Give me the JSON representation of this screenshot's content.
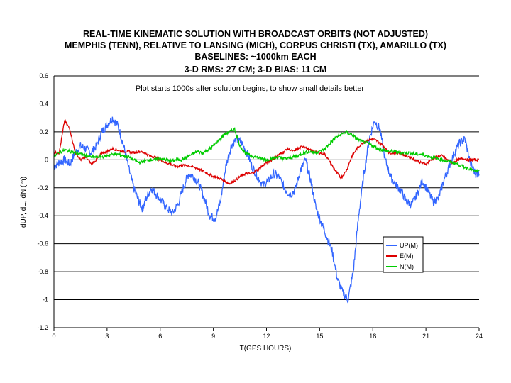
{
  "chart_data": {
    "type": "line",
    "title": [
      "REAL-TIME KINEMATIC SOLUTION WITH BROADCAST ORBITS (NOT ADJUSTED)",
      "MEMPHIS (TENN), RELATIVE TO LANSING (MICH), CORPUS CHRISTI (TX), AMARILLO (TX)",
      "BASELINES:  ~1000km EACH",
      "3-D RMS: 27 CM; 3-D BIAS: 11 CM"
    ],
    "xlabel": "T(GPS HOURS)",
    "ylabel": "dUP, dE, dN   (m)",
    "xlim": [
      0,
      24
    ],
    "ylim": [
      -1.2,
      0.6
    ],
    "xticks": [
      "0",
      "3",
      "6",
      "9",
      "12",
      "15",
      "18",
      "21",
      "24"
    ],
    "yticks": [
      "0.6",
      "0.4",
      "0.2",
      "0",
      "-0.2",
      "-0.4",
      "-0.6",
      "-0.8",
      "-1",
      "-1.2"
    ],
    "grid": true,
    "annotation": "Plot starts 1000s after solution begins, to show small details better",
    "legend_position": "bottom-right",
    "series": [
      {
        "name": "UP(M)",
        "color": "#3366ff",
        "x": [
          0.0,
          0.3,
          0.6,
          0.9,
          1.2,
          1.5,
          1.8,
          2.1,
          2.4,
          2.7,
          3.0,
          3.3,
          3.6,
          3.9,
          4.2,
          4.5,
          4.8,
          5.0,
          5.2,
          5.5,
          5.8,
          6.1,
          6.4,
          6.7,
          7.0,
          7.3,
          7.6,
          7.9,
          8.2,
          8.5,
          8.8,
          9.1,
          9.4,
          9.7,
          10.0,
          10.3,
          10.6,
          10.9,
          11.2,
          11.5,
          11.8,
          12.1,
          12.4,
          12.7,
          13.0,
          13.3,
          13.6,
          13.9,
          14.2,
          14.5,
          14.8,
          15.1,
          15.4,
          15.7,
          16.0,
          16.3,
          16.6,
          16.9,
          17.2,
          17.5,
          17.8,
          18.1,
          18.4,
          18.7,
          19.0,
          19.3,
          19.6,
          19.9,
          20.2,
          20.5,
          20.8,
          21.1,
          21.4,
          21.7,
          22.0,
          22.3,
          22.6,
          22.9,
          23.2,
          23.5,
          23.8,
          24.0
        ],
        "y": [
          -0.05,
          -0.02,
          0.0,
          -0.03,
          0.05,
          0.1,
          0.08,
          0.05,
          0.1,
          0.2,
          0.25,
          0.3,
          0.25,
          0.12,
          -0.05,
          -0.2,
          -0.3,
          -0.35,
          -0.28,
          -0.2,
          -0.25,
          -0.3,
          -0.35,
          -0.38,
          -0.32,
          -0.2,
          -0.1,
          -0.12,
          -0.18,
          -0.28,
          -0.4,
          -0.42,
          -0.3,
          -0.05,
          0.1,
          0.15,
          0.12,
          0.05,
          -0.05,
          -0.12,
          -0.18,
          -0.15,
          -0.1,
          -0.12,
          -0.2,
          -0.25,
          -0.22,
          -0.08,
          0.0,
          -0.15,
          -0.35,
          -0.45,
          -0.55,
          -0.65,
          -0.85,
          -0.95,
          -1.0,
          -0.8,
          -0.4,
          -0.1,
          0.15,
          0.28,
          0.22,
          0.0,
          -0.12,
          -0.18,
          -0.22,
          -0.3,
          -0.32,
          -0.25,
          -0.15,
          -0.22,
          -0.3,
          -0.28,
          -0.15,
          -0.05,
          0.05,
          0.12,
          0.15,
          -0.02,
          -0.1,
          -0.1
        ]
      },
      {
        "name": "E(M)",
        "color": "#dd0000",
        "x": [
          0.0,
          0.3,
          0.6,
          0.9,
          1.2,
          1.5,
          1.8,
          2.1,
          2.4,
          2.7,
          3.0,
          3.3,
          3.6,
          3.9,
          4.2,
          4.5,
          4.8,
          5.1,
          5.4,
          5.7,
          6.0,
          6.3,
          6.6,
          6.9,
          7.2,
          7.5,
          7.8,
          8.1,
          8.4,
          8.7,
          9.0,
          9.3,
          9.6,
          9.9,
          10.2,
          10.5,
          10.8,
          11.1,
          11.4,
          11.7,
          12.0,
          12.3,
          12.6,
          12.9,
          13.2,
          13.5,
          13.8,
          14.1,
          14.4,
          14.7,
          15.0,
          15.3,
          15.6,
          15.9,
          16.2,
          16.5,
          16.8,
          17.1,
          17.4,
          17.7,
          18.0,
          18.3,
          18.6,
          18.9,
          19.2,
          19.5,
          19.8,
          20.1,
          20.4,
          20.7,
          21.0,
          21.3,
          21.6,
          21.9,
          22.2,
          22.5,
          22.8,
          23.1,
          23.4,
          23.7,
          24.0
        ],
        "y": [
          0.05,
          0.05,
          0.28,
          0.22,
          0.05,
          0.0,
          0.02,
          -0.03,
          0.0,
          0.05,
          0.06,
          0.08,
          0.07,
          0.06,
          0.06,
          0.05,
          0.06,
          0.05,
          0.03,
          0.02,
          0.0,
          -0.02,
          -0.03,
          -0.05,
          -0.04,
          -0.04,
          -0.05,
          -0.06,
          -0.08,
          -0.1,
          -0.12,
          -0.13,
          -0.15,
          -0.17,
          -0.15,
          -0.12,
          -0.1,
          -0.1,
          -0.08,
          -0.05,
          -0.02,
          0.0,
          0.03,
          0.05,
          0.08,
          0.06,
          0.08,
          0.1,
          0.07,
          0.06,
          0.05,
          0.04,
          -0.02,
          -0.08,
          -0.13,
          -0.08,
          0.02,
          0.08,
          0.12,
          0.14,
          0.15,
          0.13,
          0.1,
          0.05,
          0.05,
          0.05,
          0.03,
          0.02,
          0.0,
          -0.02,
          -0.03,
          0.0,
          0.02,
          0.03,
          0.0,
          -0.02,
          0.0,
          0.01,
          0.0,
          0.0,
          0.0
        ]
      },
      {
        "name": "N(M)",
        "color": "#00cc00",
        "x": [
          0.0,
          0.3,
          0.6,
          0.9,
          1.2,
          1.5,
          1.8,
          2.1,
          2.4,
          2.7,
          3.0,
          3.3,
          3.6,
          3.9,
          4.2,
          4.5,
          4.8,
          5.1,
          5.4,
          5.7,
          6.0,
          6.3,
          6.6,
          6.9,
          7.2,
          7.5,
          7.8,
          8.1,
          8.4,
          8.7,
          9.0,
          9.3,
          9.6,
          9.9,
          10.2,
          10.5,
          10.8,
          11.1,
          11.4,
          11.7,
          12.0,
          12.3,
          12.6,
          12.9,
          13.2,
          13.5,
          13.8,
          14.1,
          14.4,
          14.7,
          15.0,
          15.3,
          15.6,
          15.9,
          16.2,
          16.5,
          16.8,
          17.1,
          17.4,
          17.7,
          18.0,
          18.3,
          18.6,
          18.9,
          19.2,
          19.5,
          19.8,
          20.1,
          20.4,
          20.7,
          21.0,
          21.3,
          21.6,
          21.9,
          22.2,
          22.5,
          22.8,
          23.1,
          23.4,
          23.7,
          24.0
        ],
        "y": [
          0.03,
          0.05,
          0.07,
          0.06,
          0.05,
          0.04,
          0.03,
          0.02,
          0.02,
          0.02,
          0.03,
          0.04,
          0.04,
          0.03,
          0.02,
          0.0,
          -0.02,
          -0.01,
          0.0,
          0.0,
          0.01,
          0.0,
          -0.01,
          0.0,
          0.0,
          0.02,
          0.04,
          0.06,
          0.05,
          0.07,
          0.1,
          0.14,
          0.18,
          0.2,
          0.22,
          0.1,
          0.05,
          0.03,
          0.02,
          0.01,
          0.0,
          0.01,
          0.02,
          0.01,
          0.01,
          0.02,
          0.03,
          0.05,
          0.06,
          0.05,
          0.06,
          0.08,
          0.12,
          0.16,
          0.18,
          0.2,
          0.18,
          0.15,
          0.13,
          0.12,
          0.1,
          0.08,
          0.07,
          0.06,
          0.06,
          0.05,
          0.05,
          0.05,
          0.04,
          0.04,
          0.03,
          0.02,
          0.01,
          0.0,
          -0.01,
          -0.02,
          -0.03,
          -0.05,
          -0.06,
          -0.08,
          -0.08
        ]
      }
    ]
  }
}
